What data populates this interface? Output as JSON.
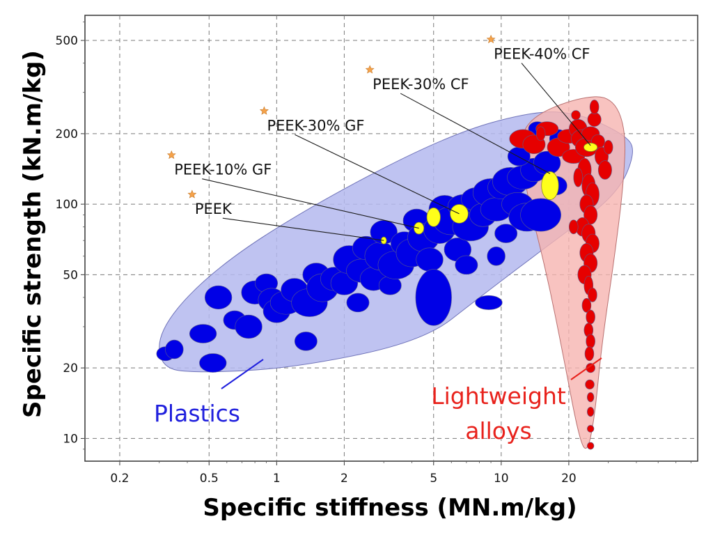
{
  "chart_data": {
    "type": "scatter",
    "title": "",
    "xlabel": "Specific stiffness (MN.m/kg)",
    "ylabel": "Specific strength (kN.m/kg)",
    "xscale": "log",
    "yscale": "log",
    "xlim": [
      0.14,
      75
    ],
    "ylim": [
      8,
      640
    ],
    "grid": true,
    "x_ticks": [
      {
        "value": 0.2,
        "label": "0.2"
      },
      {
        "value": 0.5,
        "label": "0.5"
      },
      {
        "value": 1,
        "label": "1"
      },
      {
        "value": 2,
        "label": "2"
      },
      {
        "value": 5,
        "label": "5"
      },
      {
        "value": 10,
        "label": "10"
      },
      {
        "value": 20,
        "label": "20"
      }
    ],
    "y_ticks": [
      {
        "value": 10,
        "label": "10"
      },
      {
        "value": 20,
        "label": "20"
      },
      {
        "value": 50,
        "label": "50"
      },
      {
        "value": 100,
        "label": "100"
      },
      {
        "value": 200,
        "label": "200"
      },
      {
        "value": 500,
        "label": "500"
      }
    ],
    "regions": [
      {
        "name": "Plastics",
        "color": "#1a1aa8",
        "fill": "#b4b8ef",
        "label": "Plastics"
      },
      {
        "name": "Lightweight alloys",
        "color": "#e01b1b",
        "fill": "#f6b4b0",
        "label_lines": [
          "Lightweight",
          "alloys"
        ]
      }
    ],
    "plastics_points": [
      [
        0.32,
        23,
        0.04,
        0.03
      ],
      [
        0.35,
        24,
        0.04,
        0.04
      ],
      [
        0.47,
        28,
        0.06,
        0.04
      ],
      [
        0.52,
        21,
        0.06,
        0.04
      ],
      [
        0.55,
        40,
        0.06,
        0.05
      ],
      [
        0.65,
        32,
        0.05,
        0.04
      ],
      [
        0.75,
        30,
        0.06,
        0.05
      ],
      [
        0.8,
        42,
        0.06,
        0.05
      ],
      [
        0.9,
        46,
        0.05,
        0.04
      ],
      [
        0.95,
        39,
        0.06,
        0.05
      ],
      [
        1.0,
        35,
        0.06,
        0.05
      ],
      [
        1.1,
        38,
        0.07,
        0.05
      ],
      [
        1.2,
        43,
        0.06,
        0.05
      ],
      [
        1.35,
        26,
        0.05,
        0.04
      ],
      [
        1.4,
        38,
        0.08,
        0.06
      ],
      [
        1.5,
        50,
        0.06,
        0.05
      ],
      [
        1.6,
        44,
        0.07,
        0.06
      ],
      [
        1.8,
        48,
        0.06,
        0.05
      ],
      [
        2.0,
        46,
        0.06,
        0.05
      ],
      [
        2.1,
        58,
        0.07,
        0.06
      ],
      [
        2.3,
        38,
        0.05,
        0.04
      ],
      [
        2.4,
        52,
        0.07,
        0.05
      ],
      [
        2.5,
        65,
        0.06,
        0.05
      ],
      [
        2.7,
        48,
        0.06,
        0.05
      ],
      [
        2.9,
        60,
        0.07,
        0.06
      ],
      [
        3.0,
        76,
        0.06,
        0.05
      ],
      [
        3.2,
        45,
        0.05,
        0.04
      ],
      [
        3.4,
        55,
        0.08,
        0.06
      ],
      [
        3.7,
        68,
        0.06,
        0.05
      ],
      [
        4.0,
        62,
        0.07,
        0.06
      ],
      [
        4.2,
        85,
        0.06,
        0.05
      ],
      [
        4.5,
        72,
        0.07,
        0.06
      ],
      [
        4.8,
        58,
        0.06,
        0.05
      ],
      [
        5.0,
        40,
        0.08,
        0.12
      ],
      [
        5.3,
        78,
        0.07,
        0.06
      ],
      [
        5.6,
        95,
        0.07,
        0.06
      ],
      [
        6.0,
        85,
        0.08,
        0.06
      ],
      [
        6.4,
        64,
        0.06,
        0.05
      ],
      [
        6.8,
        98,
        0.07,
        0.05
      ],
      [
        7.3,
        80,
        0.08,
        0.06
      ],
      [
        7.8,
        105,
        0.07,
        0.05
      ],
      [
        8.3,
        90,
        0.06,
        0.05
      ],
      [
        8.8,
        38,
        0.06,
        0.03
      ],
      [
        9.0,
        112,
        0.08,
        0.06
      ],
      [
        9.5,
        95,
        0.07,
        0.05
      ],
      [
        10.0,
        118,
        0.06,
        0.05
      ],
      [
        10.5,
        75,
        0.05,
        0.04
      ],
      [
        11.0,
        125,
        0.08,
        0.06
      ],
      [
        11.8,
        100,
        0.07,
        0.05
      ],
      [
        12.5,
        130,
        0.07,
        0.05
      ],
      [
        13.0,
        88,
        0.08,
        0.06
      ],
      [
        14.0,
        140,
        0.06,
        0.05
      ],
      [
        15.0,
        90,
        0.09,
        0.07
      ],
      [
        16.0,
        150,
        0.06,
        0.05
      ],
      [
        17.5,
        120,
        0.05,
        0.04
      ],
      [
        18.0,
        190,
        0.04,
        0.04
      ],
      [
        14.5,
        210,
        0.04,
        0.03
      ],
      [
        12.0,
        160,
        0.05,
        0.04
      ],
      [
        9.5,
        60,
        0.04,
        0.04
      ],
      [
        7.0,
        55,
        0.05,
        0.04
      ]
    ],
    "alloys_points": [
      [
        12.5,
        190,
        0.06,
        0.04
      ],
      [
        14.0,
        180,
        0.05,
        0.04
      ],
      [
        16.0,
        210,
        0.05,
        0.03
      ],
      [
        18.0,
        175,
        0.05,
        0.04
      ],
      [
        20.0,
        195,
        0.05,
        0.03
      ],
      [
        21.0,
        160,
        0.05,
        0.03
      ],
      [
        22.0,
        210,
        0.04,
        0.04
      ],
      [
        23.0,
        190,
        0.05,
        0.04
      ],
      [
        24.0,
        175,
        0.05,
        0.04
      ],
      [
        25.0,
        200,
        0.04,
        0.03
      ],
      [
        26.0,
        230,
        0.03,
        0.03
      ],
      [
        27.0,
        185,
        0.03,
        0.03
      ],
      [
        28.0,
        160,
        0.03,
        0.04
      ],
      [
        29.0,
        140,
        0.03,
        0.04
      ],
      [
        30.0,
        175,
        0.02,
        0.03
      ],
      [
        23.5,
        140,
        0.03,
        0.05
      ],
      [
        24.5,
        120,
        0.03,
        0.05
      ],
      [
        25.5,
        110,
        0.03,
        0.05
      ],
      [
        24.0,
        100,
        0.03,
        0.04
      ],
      [
        25.0,
        90,
        0.03,
        0.04
      ],
      [
        23.0,
        80,
        0.03,
        0.04
      ],
      [
        24.5,
        75,
        0.03,
        0.04
      ],
      [
        25.5,
        68,
        0.03,
        0.04
      ],
      [
        24.0,
        62,
        0.03,
        0.04
      ],
      [
        25.0,
        56,
        0.03,
        0.04
      ],
      [
        23.5,
        50,
        0.03,
        0.04
      ],
      [
        24.5,
        45,
        0.02,
        0.04
      ],
      [
        25.5,
        41,
        0.02,
        0.03
      ],
      [
        24.0,
        37,
        0.02,
        0.03
      ],
      [
        25.0,
        33,
        0.02,
        0.03
      ],
      [
        24.5,
        29,
        0.02,
        0.03
      ],
      [
        25.0,
        26,
        0.02,
        0.03
      ],
      [
        24.7,
        23,
        0.02,
        0.03
      ],
      [
        25.0,
        20,
        0.02,
        0.02
      ],
      [
        24.8,
        17,
        0.02,
        0.02
      ],
      [
        25.0,
        15,
        0.015,
        0.02
      ],
      [
        25.0,
        13,
        0.015,
        0.02
      ],
      [
        25.0,
        11,
        0.015,
        0.015
      ],
      [
        25.0,
        9.3,
        0.015,
        0.015
      ],
      [
        21.0,
        80,
        0.02,
        0.03
      ],
      [
        22.0,
        130,
        0.02,
        0.04
      ],
      [
        26.0,
        260,
        0.02,
        0.03
      ],
      [
        21.5,
        240,
        0.02,
        0.02
      ],
      [
        15.0,
        200,
        0.02,
        0.03
      ]
    ],
    "peek_series": [
      {
        "name": "PEEK",
        "x": 3.0,
        "y": 70,
        "rx": 0.012,
        "ry": 0.015,
        "label": "PEEK"
      },
      {
        "name": "PEEK-10% GF",
        "x": 4.3,
        "y": 79,
        "rx": 0.022,
        "ry": 0.025,
        "label": "PEEK-10% GF"
      },
      {
        "name": "PEEK-30% GF",
        "x": 5.0,
        "y": 88,
        "rx": 0.03,
        "ry": 0.04,
        "label": "PEEK-30% GF"
      },
      {
        "name": "PEEK-30% GF",
        "x": 6.5,
        "y": 91,
        "rx": 0.04,
        "ry": 0.04,
        "label": ""
      },
      {
        "name": "PEEK-30% CF",
        "x": 16.5,
        "y": 120,
        "rx": 0.038,
        "ry": 0.06,
        "label": "PEEK-30% CF"
      },
      {
        "name": "PEEK-40% CF",
        "x": 25.0,
        "y": 175,
        "rx": 0.03,
        "ry": 0.018,
        "label": "PEEK-40% CF"
      }
    ],
    "annotations": [
      {
        "text": "PEEK",
        "star": [
          0.42,
          110
        ],
        "point": [
          3.0,
          70
        ]
      },
      {
        "text": "PEEK-10% GF",
        "star": [
          0.34,
          162
        ],
        "point": [
          4.3,
          79
        ]
      },
      {
        "text": "PEEK-30% GF",
        "star": [
          0.88,
          250
        ],
        "point": [
          6.5,
          91
        ]
      },
      {
        "text": "PEEK-30% CF",
        "star": [
          2.6,
          375
        ],
        "point": [
          16.5,
          135
        ]
      },
      {
        "text": "PEEK-40% CF",
        "star": [
          9.0,
          505
        ],
        "point": [
          25.0,
          178
        ]
      }
    ],
    "colors": {
      "plastics_marker": "#0000e6",
      "alloys_marker": "#e60000",
      "peek_marker": "#ffff1a",
      "star": "#f5a24a",
      "grid": "#7a7a7a",
      "region_label_plastics": "#1f1fdd",
      "region_label_alloys": "#e8221c"
    }
  }
}
